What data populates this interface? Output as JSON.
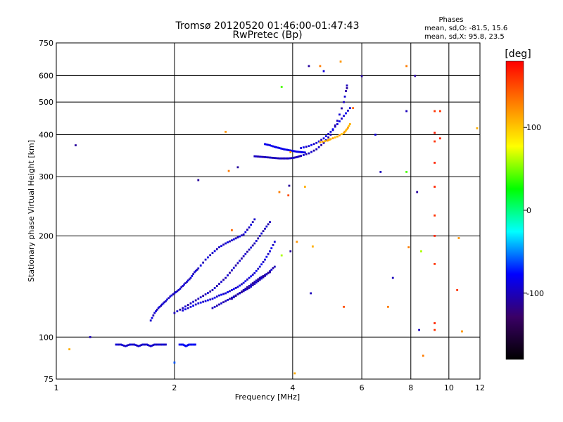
{
  "chart_data": {
    "type": "scatter",
    "title": "Tromsø 20120520 01:46:00-01:47:43",
    "subtitle": "RwPretec (Bp)",
    "phase_box": {
      "title": "Phases",
      "line1": "mean, sd,O: -81.5, 15.6",
      "line2": "mean, sd,X:  95.8, 23.5"
    },
    "xlabel": "Frequency [MHz]",
    "ylabel": "Stationary phase Virtual Height [km]",
    "x_scale": "log",
    "y_scale": "log",
    "xlim": [
      1,
      12
    ],
    "ylim": [
      75,
      750
    ],
    "xticks": [
      1,
      2,
      4,
      6,
      8,
      10,
      12
    ],
    "yticks": [
      75,
      100,
      200,
      300,
      400,
      500,
      600,
      750
    ],
    "grid": true,
    "colorbar": {
      "label": "[deg]",
      "range": [
        -180,
        180
      ],
      "ticks": [
        100,
        0,
        -100
      ],
      "colors": [
        "#000000",
        "#3a0066",
        "#0000ff",
        "#00ffff",
        "#00ff00",
        "#ffff00",
        "#ff8000",
        "#ff0000"
      ]
    },
    "traces": [
      {
        "x": [
          1.42,
          1.46,
          1.5,
          1.54,
          1.58,
          1.62,
          1.66,
          1.7,
          1.74,
          1.78,
          1.82,
          1.86,
          1.9
        ],
        "y": [
          95,
          95,
          94,
          95,
          95,
          94,
          95,
          95,
          94,
          95,
          95,
          95,
          95
        ],
        "phase": -95
      },
      {
        "x": [
          2.06,
          2.1,
          2.14,
          2.18,
          2.22,
          2.26
        ],
        "y": [
          95,
          95,
          94,
          95,
          95,
          95
        ],
        "phase": -80
      },
      {
        "x": [
          1.74,
          1.78,
          1.82,
          1.86,
          1.9,
          1.95,
          2.0,
          2.05,
          2.1,
          2.15,
          2.2,
          2.25,
          2.3,
          2.4,
          2.5,
          2.6,
          2.7,
          2.8,
          2.9,
          3.0,
          3.1,
          3.2
        ],
        "y": [
          112,
          118,
          122,
          125,
          128,
          132,
          135,
          138,
          142,
          146,
          150,
          156,
          160,
          170,
          178,
          185,
          190,
          194,
          198,
          202,
          212,
          224
        ],
        "phase": -95
      },
      {
        "x": [
          2.0,
          2.1,
          2.2,
          2.3,
          2.4,
          2.5,
          2.6,
          2.7,
          2.8,
          2.9,
          3.0,
          3.1,
          3.2,
          3.3,
          3.4,
          3.5
        ],
        "y": [
          118,
          122,
          126,
          130,
          134,
          138,
          144,
          150,
          158,
          166,
          174,
          182,
          190,
          200,
          210,
          220
        ],
        "phase": -100
      },
      {
        "x": [
          2.1,
          2.2,
          2.3,
          2.4,
          2.5,
          2.6,
          2.7,
          2.8,
          2.9,
          3.0,
          3.1,
          3.2,
          3.3,
          3.4,
          3.5,
          3.6
        ],
        "y": [
          120,
          123,
          126,
          128,
          130,
          133,
          135,
          138,
          141,
          145,
          150,
          155,
          162,
          170,
          180,
          192
        ],
        "phase": -90
      },
      {
        "x": [
          2.5,
          2.6,
          2.7,
          2.8,
          2.9,
          3.0,
          3.1,
          3.2,
          3.3,
          3.4,
          3.5,
          3.6
        ],
        "y": [
          122,
          125,
          128,
          131,
          134,
          137,
          140,
          144,
          148,
          152,
          157,
          162
        ],
        "phase": -100
      },
      {
        "x": [
          2.8,
          2.9,
          3.0,
          3.1,
          3.2,
          3.3,
          3.4,
          3.5
        ],
        "y": [
          130,
          134,
          138,
          142,
          146,
          150,
          153,
          156
        ],
        "phase": -105
      },
      {
        "x": [
          3.2,
          3.3,
          3.4,
          3.5,
          3.6,
          3.7,
          3.8,
          3.9,
          4.0,
          4.1,
          4.2,
          4.4,
          4.6,
          4.8,
          5.0,
          5.2,
          5.4,
          5.5
        ],
        "y": [
          345,
          344,
          343,
          342,
          341,
          340,
          340,
          340,
          341,
          343,
          346,
          352,
          362,
          378,
          400,
          440,
          500,
          560
        ],
        "phase": -100
      },
      {
        "x": [
          3.4,
          3.5,
          3.6,
          3.7,
          3.8,
          3.9,
          4.0,
          4.1,
          4.2,
          4.3
        ],
        "y": [
          375,
          372,
          368,
          365,
          362,
          360,
          358,
          356,
          355,
          354
        ],
        "phase": -85
      },
      {
        "x": [
          4.2,
          4.4,
          4.6,
          4.8,
          5.0,
          5.2,
          5.4,
          5.6
        ],
        "y": [
          365,
          370,
          378,
          390,
          408,
          430,
          455,
          480
        ],
        "phase": -90
      },
      {
        "x": [
          4.7,
          4.9,
          5.0,
          5.2,
          5.4,
          5.5,
          5.6
        ],
        "y": [
          380,
          384,
          388,
          395,
          405,
          415,
          430
        ],
        "phase": 110
      }
    ],
    "scattered_points": [
      {
        "x": 1.08,
        "y": 92,
        "phase": 110
      },
      {
        "x": 1.12,
        "y": 372,
        "phase": -110
      },
      {
        "x": 1.22,
        "y": 100,
        "phase": -100
      },
      {
        "x": 2.0,
        "y": 84,
        "phase": -60
      },
      {
        "x": 2.3,
        "y": 293,
        "phase": -110
      },
      {
        "x": 2.7,
        "y": 408,
        "phase": 120
      },
      {
        "x": 2.75,
        "y": 312,
        "phase": 130
      },
      {
        "x": 2.8,
        "y": 208,
        "phase": 140
      },
      {
        "x": 2.9,
        "y": 320,
        "phase": -110
      },
      {
        "x": 3.7,
        "y": 270,
        "phase": 130
      },
      {
        "x": 3.75,
        "y": 555,
        "phase": 40
      },
      {
        "x": 3.75,
        "y": 175,
        "phase": 60
      },
      {
        "x": 3.9,
        "y": 264,
        "phase": 150
      },
      {
        "x": 3.92,
        "y": 282,
        "phase": -110
      },
      {
        "x": 3.95,
        "y": 355,
        "phase": 120
      },
      {
        "x": 3.95,
        "y": 180,
        "phase": -110
      },
      {
        "x": 4.05,
        "y": 78,
        "phase": 110
      },
      {
        "x": 4.1,
        "y": 192,
        "phase": 120
      },
      {
        "x": 4.3,
        "y": 280,
        "phase": 110
      },
      {
        "x": 4.4,
        "y": 640,
        "phase": -110
      },
      {
        "x": 4.45,
        "y": 135,
        "phase": -100
      },
      {
        "x": 4.5,
        "y": 186,
        "phase": 110
      },
      {
        "x": 4.7,
        "y": 640,
        "phase": 130
      },
      {
        "x": 4.8,
        "y": 618,
        "phase": -90
      },
      {
        "x": 5.3,
        "y": 660,
        "phase": 120
      },
      {
        "x": 5.4,
        "y": 123,
        "phase": 150
      },
      {
        "x": 5.5,
        "y": 550,
        "phase": -110
      },
      {
        "x": 5.7,
        "y": 480,
        "phase": 140
      },
      {
        "x": 6.0,
        "y": 597,
        "phase": -110
      },
      {
        "x": 6.5,
        "y": 400,
        "phase": -90
      },
      {
        "x": 6.7,
        "y": 310,
        "phase": -100
      },
      {
        "x": 7.0,
        "y": 123,
        "phase": 130
      },
      {
        "x": 7.2,
        "y": 150,
        "phase": -100
      },
      {
        "x": 7.8,
        "y": 640,
        "phase": 130
      },
      {
        "x": 7.8,
        "y": 470,
        "phase": -100
      },
      {
        "x": 7.8,
        "y": 310,
        "phase": 40
      },
      {
        "x": 7.9,
        "y": 185,
        "phase": 130
      },
      {
        "x": 8.2,
        "y": 598,
        "phase": -110
      },
      {
        "x": 8.3,
        "y": 270,
        "phase": -110
      },
      {
        "x": 8.4,
        "y": 105,
        "phase": -100
      },
      {
        "x": 8.5,
        "y": 180,
        "phase": 60
      },
      {
        "x": 8.6,
        "y": 88,
        "phase": 130
      },
      {
        "x": 9.2,
        "y": 470,
        "phase": 160
      },
      {
        "x": 9.2,
        "y": 405,
        "phase": 170
      },
      {
        "x": 9.2,
        "y": 382,
        "phase": 160
      },
      {
        "x": 9.2,
        "y": 330,
        "phase": 165
      },
      {
        "x": 9.2,
        "y": 280,
        "phase": 165
      },
      {
        "x": 9.2,
        "y": 230,
        "phase": 160
      },
      {
        "x": 9.2,
        "y": 200,
        "phase": 165
      },
      {
        "x": 9.2,
        "y": 165,
        "phase": 160
      },
      {
        "x": 9.2,
        "y": 110,
        "phase": 165
      },
      {
        "x": 9.2,
        "y": 105,
        "phase": 160
      },
      {
        "x": 9.5,
        "y": 470,
        "phase": 160
      },
      {
        "x": 9.5,
        "y": 390,
        "phase": 165
      },
      {
        "x": 10.5,
        "y": 138,
        "phase": 160
      },
      {
        "x": 10.6,
        "y": 197,
        "phase": 120
      },
      {
        "x": 10.8,
        "y": 104,
        "phase": 120
      },
      {
        "x": 11.8,
        "y": 418,
        "phase": 110
      }
    ]
  }
}
